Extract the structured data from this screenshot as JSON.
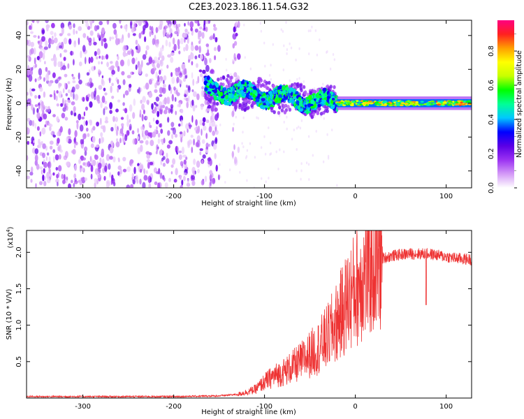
{
  "title": "C2E3.2023.186.11.54.G32",
  "chart_data": [
    {
      "type": "heatmap",
      "xlabel": "Height of straight line (km)",
      "ylabel": "Frequency (Hz)",
      "xlim": [
        -362,
        128
      ],
      "ylim": [
        -50,
        49
      ],
      "x_ticks": [
        -300,
        -200,
        -100,
        0,
        100
      ],
      "y_ticks": [
        -40,
        -20,
        0,
        20,
        40
      ],
      "colorbar": {
        "label": "Normalized spectral amplitude",
        "range": [
          0,
          0.98
        ],
        "ticks": [
          "0.0",
          "0.2",
          "0.4",
          "0.6",
          "0.8"
        ],
        "tick_values": [
          0.0,
          0.2,
          0.4,
          0.6,
          0.8
        ],
        "colors": [
          "#ffffff",
          "#d49af7",
          "#9b32f2",
          "#5a00e6",
          "#0000ff",
          "#00c8ff",
          "#00ff96",
          "#00ff00",
          "#c8ff00",
          "#ffff00",
          "#ffa000",
          "#ff2020",
          "#ff0080"
        ]
      },
      "features": [
        {
          "x": [
            -362,
            -150
          ],
          "freq_range": [
            -50,
            49
          ],
          "level": 0.1
        },
        {
          "x": [
            -135,
            -128
          ],
          "freq_range": [
            -50,
            49
          ],
          "level": 0.1
        },
        {
          "x": [
            -165,
            -20
          ],
          "freq_range": [
            -8,
            12
          ],
          "level": 0.45
        },
        {
          "x": [
            -20,
            128
          ],
          "freq_range": [
            -3,
            3
          ],
          "level": 0.55
        }
      ]
    },
    {
      "type": "line",
      "xlabel": "Height of straight line (km)",
      "ylabel": "SNR (10 * V/V)",
      "y_multiplier": "(x10",
      "y_multiplier_exp": "4",
      "y_multiplier_close": ")",
      "xlim": [
        -362,
        128
      ],
      "ylim": [
        0,
        2.3
      ],
      "x_ticks": [
        -300,
        -200,
        -100,
        0,
        100
      ],
      "y_ticks": [
        0.5,
        1.0,
        1.5,
        2.0
      ],
      "y_tick_labels": [
        "0.5",
        "1.0",
        "1.5",
        "2.0"
      ],
      "color": "#ee3333",
      "series": [
        {
          "x": [
            -362,
            -300,
            -250,
            -200,
            -150,
            -130,
            -120,
            -110,
            -100,
            -90,
            -80,
            -70,
            -60,
            -50,
            -40,
            -30,
            -20,
            -10,
            0,
            10,
            20,
            30,
            40,
            50,
            60,
            70,
            80,
            90,
            100,
            110,
            128
          ],
          "values": [
            0.02,
            0.02,
            0.02,
            0.02,
            0.03,
            0.05,
            0.08,
            0.12,
            0.22,
            0.3,
            0.35,
            0.42,
            0.5,
            0.6,
            0.7,
            0.85,
            1.05,
            1.3,
            1.5,
            1.7,
            1.85,
            1.92,
            1.95,
            1.97,
            1.98,
            1.98,
            1.98,
            1.96,
            1.94,
            1.92,
            1.9
          ]
        }
      ]
    }
  ]
}
